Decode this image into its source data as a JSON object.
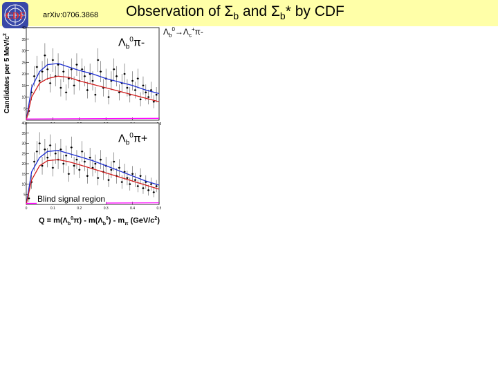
{
  "header": {
    "arxiv_id": "arXiv:0706.3868",
    "title_main": "Observation of Σ",
    "title_sub1": "b",
    "title_mid": " and Σ",
    "title_sub2": "b",
    "title_end": "* by CDF",
    "logo_text": "CDF"
  },
  "decay": {
    "lb": "Λ",
    "lb_sub": "b",
    "lb_sup": "0",
    "arrow": "→",
    "lc": "Λ",
    "lc_sub": "c",
    "lc_sup": "+",
    "pi": "π-"
  },
  "figure": {
    "ylabel": "Candidates per 5 MeV/c",
    "ylabel_sup": "2",
    "top_label": {
      "main": "Λ",
      "sub": "b",
      "sup": "0",
      "tail": "π-"
    },
    "bottom_label": {
      "main": "Λ",
      "sub": "b",
      "sup": "0",
      "tail": "π+"
    },
    "blind_region": "Blind signal region",
    "xlabel_q": "Q = m(Λ",
    "xlabel_a": "π) - m(Λ",
    "xlabel_b": ") - m",
    "xlabel_pi": "π",
    "xlabel_units": "(GeV/c",
    "xlabel_units_sup": "2",
    "xlabel_units_end": ")",
    "xlabel_sub_b": "b",
    "xlabel_sup_0": "0",
    "xlabel_sub_b2": "b",
    "xlabel_sup_02": "0"
  },
  "chart_data": [
    {
      "type": "scatter",
      "panel": "top",
      "ylim": [
        0,
        40
      ],
      "xlim": [
        0,
        0.5
      ],
      "yticks": [
        5,
        10,
        15,
        20,
        25,
        30,
        35,
        40
      ],
      "series": [
        {
          "name": "",
          "color": "#000000",
          "x": [
            0.01,
            0.02,
            0.03,
            0.04,
            0.05,
            0.06,
            0.07,
            0.08,
            0.09,
            0.1,
            0.11,
            0.12,
            0.13,
            0.14,
            0.15,
            0.16,
            0.17,
            0.18,
            0.19,
            0.2,
            0.21,
            0.22,
            0.23,
            0.24,
            0.25,
            0.26,
            0.27,
            0.28,
            0.29,
            0.3,
            0.31,
            0.32,
            0.33,
            0.34,
            0.35,
            0.36,
            0.37,
            0.38,
            0.39,
            0.4,
            0.41,
            0.42,
            0.43,
            0.44,
            0.45,
            0.46,
            0.47,
            0.48,
            0.49
          ],
          "y": [
            4,
            12,
            19,
            23,
            17,
            21,
            28,
            22,
            16,
            26,
            19,
            24,
            14,
            21,
            12,
            18,
            22,
            15,
            24,
            17,
            22,
            19,
            13,
            20,
            17,
            11,
            26,
            21,
            14,
            18,
            10,
            17,
            22,
            19,
            12,
            16,
            20,
            14,
            11,
            17,
            13,
            18,
            9,
            15,
            12,
            10,
            13,
            8,
            11
          ]
        }
      ],
      "fits": [
        {
          "name": "",
          "color": "#1a2bd0",
          "x": [
            0.0,
            0.02,
            0.05,
            0.08,
            0.12,
            0.16,
            0.2,
            0.25,
            0.3,
            0.35,
            0.4,
            0.45,
            0.5
          ],
          "y": [
            0,
            14,
            21,
            24,
            24.5,
            23,
            21.5,
            20,
            18,
            16.5,
            15,
            13,
            11.5
          ]
        },
        {
          "name": "",
          "color": "#d01a1a",
          "x": [
            0.0,
            0.02,
            0.05,
            0.08,
            0.12,
            0.16,
            0.2,
            0.25,
            0.3,
            0.35,
            0.4,
            0.45,
            0.5
          ],
          "y": [
            0,
            10,
            16,
            18,
            19,
            18.5,
            17,
            15.5,
            14,
            12.5,
            11,
            9.5,
            8
          ]
        },
        {
          "name": "",
          "color": "#ff00ff",
          "x": [
            0.0,
            0.5
          ],
          "y": [
            0.5,
            0.8
          ]
        }
      ]
    },
    {
      "type": "scatter",
      "panel": "bottom",
      "ylim": [
        0,
        40
      ],
      "xlim": [
        0,
        0.5
      ],
      "xticks": [
        0,
        0.1,
        0.2,
        0.3,
        0.4,
        0.5
      ],
      "yticks": [
        5,
        10,
        15,
        20,
        25,
        30,
        35,
        40
      ],
      "series": [
        {
          "name": "",
          "color": "#000000",
          "x": [
            0.01,
            0.02,
            0.03,
            0.04,
            0.05,
            0.06,
            0.07,
            0.08,
            0.09,
            0.1,
            0.11,
            0.12,
            0.13,
            0.14,
            0.15,
            0.16,
            0.17,
            0.18,
            0.19,
            0.2,
            0.21,
            0.22,
            0.23,
            0.24,
            0.25,
            0.26,
            0.27,
            0.28,
            0.29,
            0.3,
            0.31,
            0.32,
            0.33,
            0.34,
            0.35,
            0.36,
            0.37,
            0.38,
            0.39,
            0.4,
            0.41,
            0.42,
            0.43,
            0.44,
            0.45,
            0.46,
            0.47,
            0.48,
            0.49
          ],
          "y": [
            3,
            11,
            21,
            26,
            30,
            19,
            27,
            23,
            29,
            18,
            25,
            22,
            27,
            20,
            24,
            15,
            28,
            19,
            22,
            17,
            26,
            21,
            14,
            23,
            18,
            20,
            13,
            22,
            16,
            19,
            12,
            17,
            21,
            14,
            18,
            11,
            16,
            13,
            10,
            15,
            12,
            9,
            14,
            8,
            11,
            7,
            10,
            6,
            9
          ]
        }
      ],
      "fits": [
        {
          "name": "",
          "color": "#1a2bd0",
          "x": [
            0.0,
            0.02,
            0.05,
            0.08,
            0.12,
            0.16,
            0.2,
            0.25,
            0.3,
            0.35,
            0.4,
            0.45,
            0.5
          ],
          "y": [
            0,
            16,
            23,
            26,
            26.5,
            25,
            23.5,
            21.5,
            19,
            16.5,
            14,
            11.5,
            9.5
          ]
        },
        {
          "name": "",
          "color": "#d01a1a",
          "x": [
            0.0,
            0.02,
            0.05,
            0.08,
            0.12,
            0.16,
            0.2,
            0.25,
            0.3,
            0.35,
            0.4,
            0.45,
            0.5
          ],
          "y": [
            0,
            12,
            19,
            21.5,
            22,
            21,
            19.5,
            17.5,
            15.5,
            13.5,
            11.5,
            9.5,
            7.5
          ]
        },
        {
          "name": "",
          "color": "#ff00ff",
          "x": [
            0.0,
            0.5
          ],
          "y": [
            0.5,
            0.8
          ]
        }
      ]
    }
  ]
}
